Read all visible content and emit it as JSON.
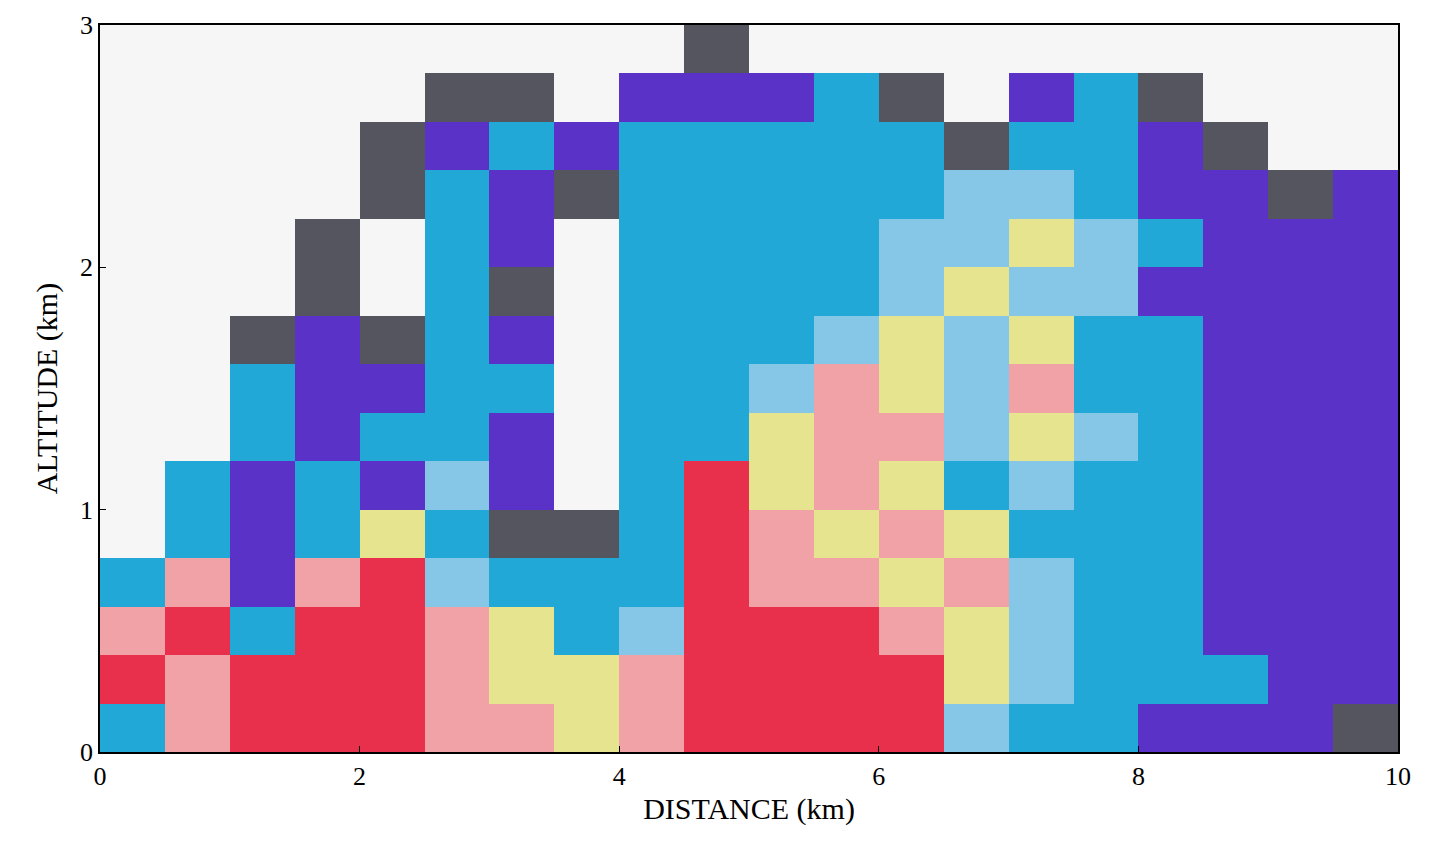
{
  "chart_data": {
    "type": "heatmap",
    "x_label": "DISTANCE (km)",
    "y_label": "ALTITUDE (km)",
    "xlim": [
      0,
      10
    ],
    "xticks": [
      0,
      2,
      4,
      6,
      8,
      10
    ],
    "ylim": [
      0,
      3
    ],
    "yticks": [
      0,
      1,
      2,
      3
    ],
    "grid": false,
    "colors": [
      "#55555f",
      "#5a32c8",
      "#22a8d6",
      "#86c6e6",
      "#e6e48e",
      "#f0a2a6",
      "#e8304c"
    ],
    "x": [
      0.25,
      0.75,
      1.25,
      1.75,
      2.25,
      2.75,
      3.25,
      3.75,
      4.25,
      4.75,
      5.25,
      5.75,
      6.25,
      6.75,
      7.25,
      7.75,
      8.25,
      8.75,
      9.25,
      9.75
    ],
    "y": [
      0.1,
      0.3,
      0.5,
      0.7,
      0.9,
      1.1,
      1.3,
      1.5,
      1.7,
      1.9,
      2.1,
      2.3,
      2.5,
      2.7,
      2.9
    ],
    "cells": [
      [
        3,
        6,
        7,
        7,
        7,
        6,
        6,
        5,
        6,
        7,
        7,
        7,
        7,
        4,
        3,
        3,
        2,
        2,
        2,
        1
      ],
      [
        7,
        6,
        7,
        7,
        7,
        6,
        5,
        5,
        6,
        7,
        7,
        7,
        7,
        5,
        4,
        3,
        3,
        3,
        2,
        2
      ],
      [
        6,
        7,
        3,
        7,
        7,
        6,
        5,
        3,
        4,
        7,
        7,
        7,
        6,
        5,
        4,
        3,
        3,
        2,
        2,
        2
      ],
      [
        3,
        6,
        2,
        6,
        7,
        4,
        3,
        3,
        3,
        7,
        6,
        6,
        5,
        6,
        4,
        3,
        3,
        2,
        2,
        2
      ],
      [
        null,
        3,
        2,
        3,
        5,
        3,
        1,
        1,
        3,
        7,
        6,
        5,
        6,
        5,
        3,
        3,
        3,
        2,
        2,
        2
      ],
      [
        null,
        3,
        2,
        3,
        2,
        4,
        2,
        null,
        3,
        7,
        5,
        6,
        5,
        3,
        4,
        3,
        3,
        2,
        2,
        2
      ],
      [
        null,
        null,
        3,
        2,
        3,
        3,
        2,
        null,
        3,
        3,
        5,
        6,
        6,
        4,
        5,
        4,
        3,
        2,
        2,
        2
      ],
      [
        null,
        null,
        3,
        2,
        2,
        3,
        3,
        null,
        3,
        3,
        4,
        6,
        5,
        4,
        6,
        3,
        3,
        2,
        2,
        2
      ],
      [
        null,
        null,
        1,
        2,
        1,
        3,
        2,
        null,
        3,
        3,
        3,
        4,
        5,
        4,
        5,
        3,
        3,
        2,
        2,
        2
      ],
      [
        null,
        null,
        null,
        1,
        null,
        3,
        1,
        null,
        3,
        3,
        3,
        3,
        4,
        5,
        4,
        4,
        2,
        2,
        2,
        2
      ],
      [
        null,
        null,
        null,
        1,
        null,
        3,
        2,
        null,
        3,
        3,
        3,
        3,
        4,
        4,
        5,
        4,
        3,
        2,
        2,
        2
      ],
      [
        null,
        null,
        null,
        null,
        1,
        3,
        2,
        1,
        3,
        3,
        3,
        3,
        3,
        4,
        4,
        3,
        2,
        2,
        1,
        2
      ],
      [
        null,
        null,
        null,
        null,
        1,
        2,
        3,
        2,
        3,
        3,
        3,
        3,
        3,
        1,
        3,
        3,
        2,
        1,
        null,
        null
      ],
      [
        null,
        null,
        null,
        null,
        null,
        1,
        1,
        null,
        2,
        2,
        2,
        3,
        1,
        null,
        2,
        3,
        1,
        null,
        null,
        null
      ],
      [
        null,
        null,
        null,
        null,
        null,
        null,
        null,
        null,
        null,
        1,
        null,
        null,
        null,
        null,
        null,
        null,
        null,
        null,
        null,
        null
      ]
    ]
  }
}
